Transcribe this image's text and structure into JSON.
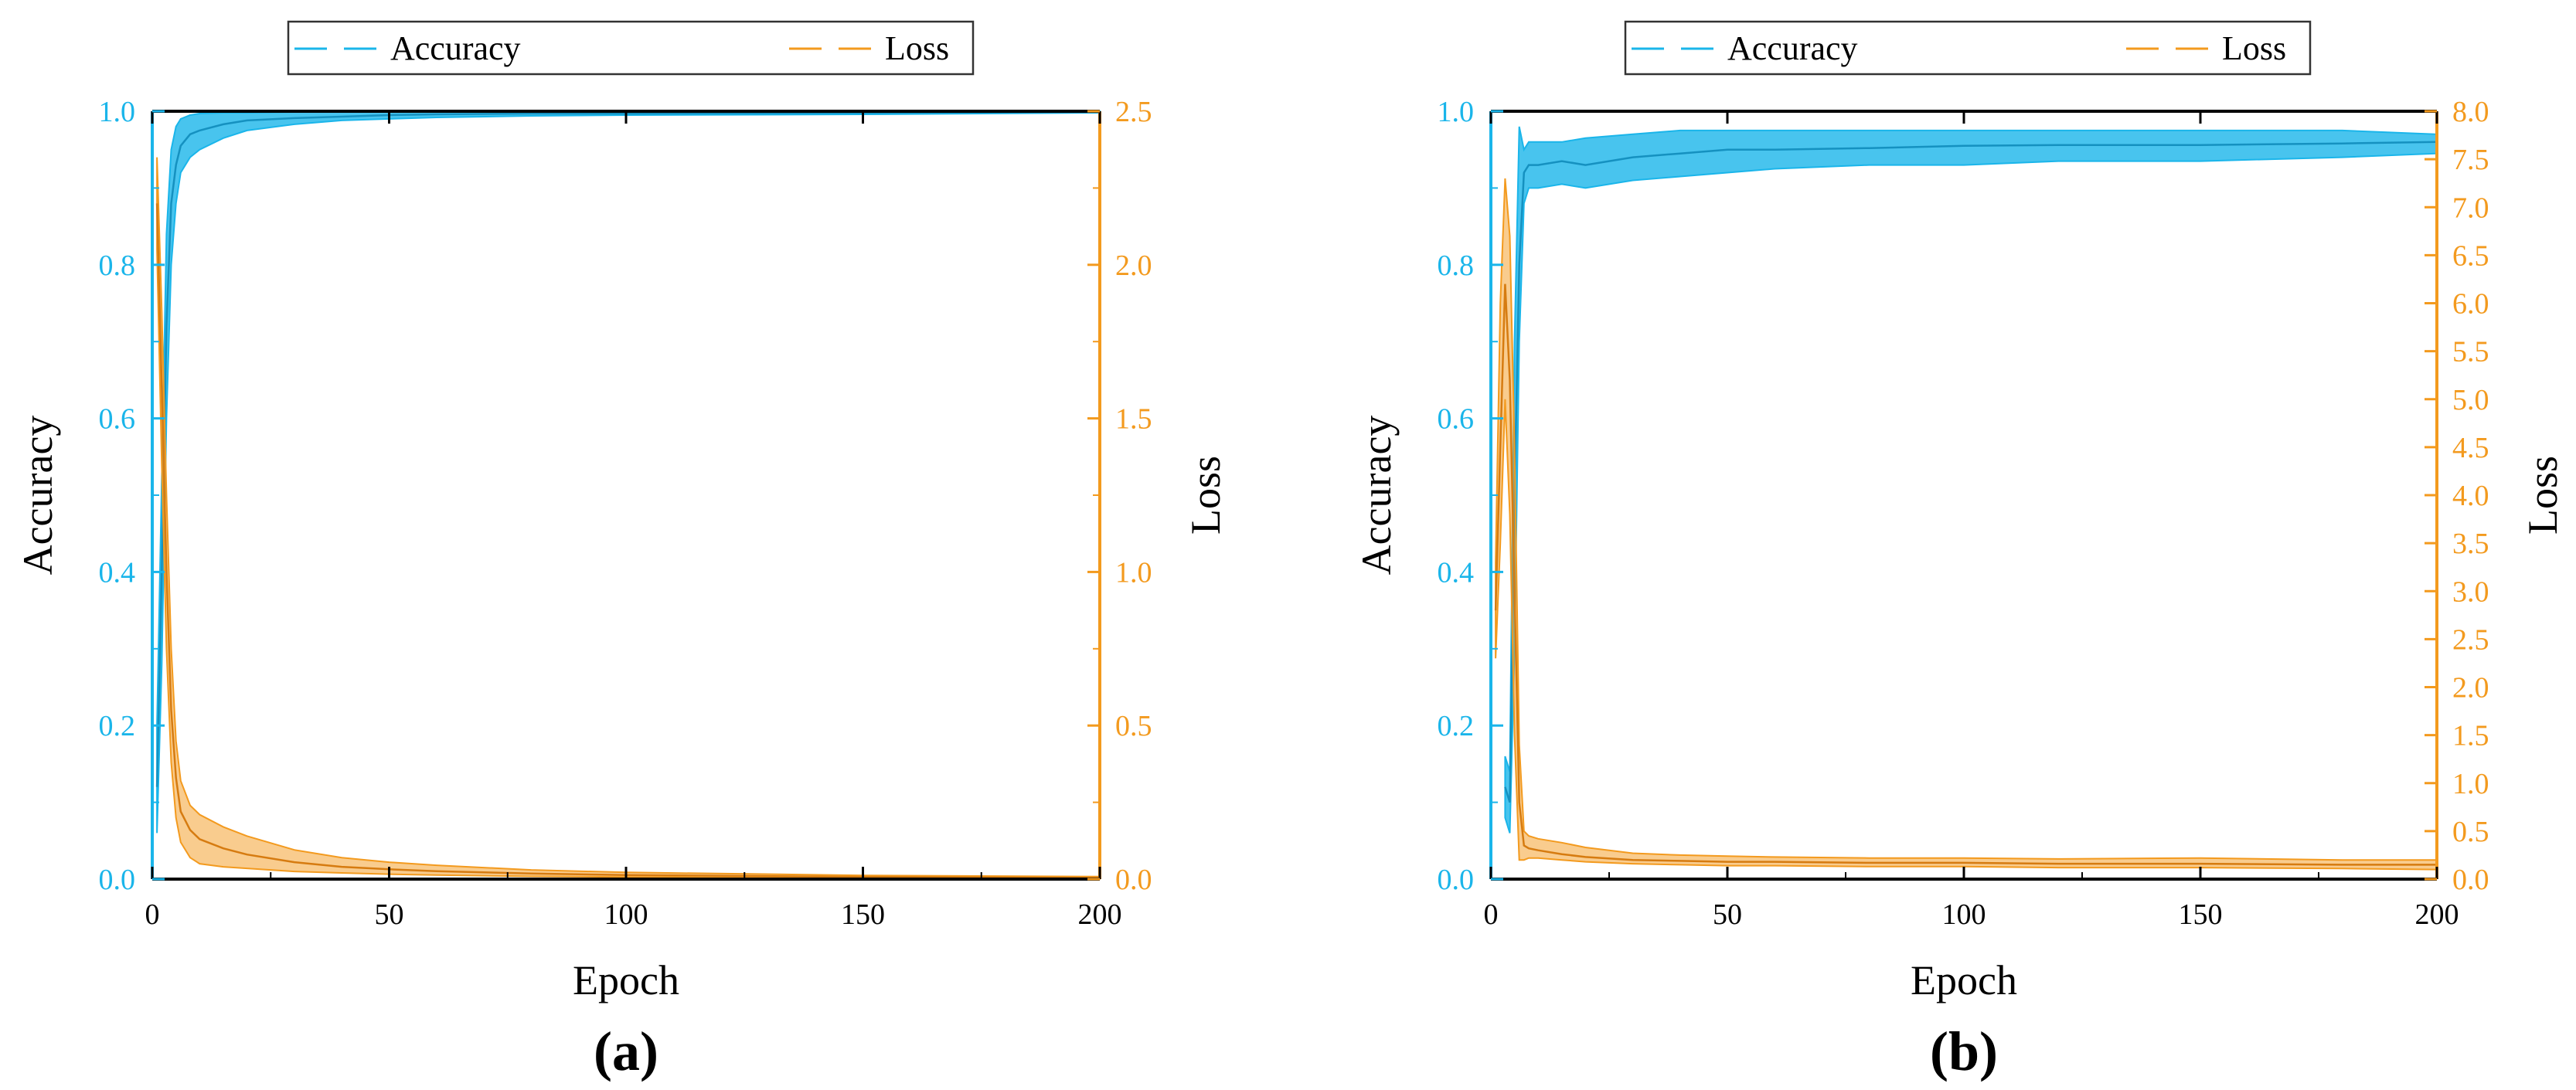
{
  "colors": {
    "accuracy": "#1ab5ea",
    "loss": "#f39a1e",
    "axis": "#000000"
  },
  "chart_data": [
    {
      "type": "line",
      "panel_label": "(a)",
      "legend": {
        "placement": "top",
        "entries": [
          "Accuracy",
          "Loss"
        ]
      },
      "xlabel": "Epoch",
      "ylabel": "Accuracy",
      "y2label": "Loss",
      "xlim": [
        0,
        200
      ],
      "ylim": [
        0,
        1.0
      ],
      "y2lim": [
        0,
        2.5
      ],
      "xticks": [
        0,
        50,
        100,
        150,
        200
      ],
      "yticks": [
        "0.0",
        "0.2",
        "0.4",
        "0.6",
        "0.8",
        "1.0"
      ],
      "y2ticks": [
        "0.0",
        "0.5",
        "1.0",
        "1.5",
        "2.0",
        "2.5"
      ],
      "grid": false,
      "series": [
        {
          "name": "Accuracy",
          "axis": "left",
          "x": [
            1,
            2,
            3,
            4,
            5,
            6,
            8,
            10,
            15,
            20,
            30,
            40,
            50,
            60,
            80,
            100,
            150,
            200
          ],
          "mean": [
            0.12,
            0.4,
            0.72,
            0.88,
            0.93,
            0.955,
            0.97,
            0.975,
            0.983,
            0.988,
            0.991,
            0.993,
            0.995,
            0.996,
            0.997,
            0.997,
            0.998,
            0.999
          ],
          "lower": [
            0.06,
            0.28,
            0.6,
            0.8,
            0.88,
            0.92,
            0.94,
            0.95,
            0.965,
            0.975,
            0.983,
            0.988,
            0.99,
            0.992,
            0.994,
            0.995,
            0.996,
            0.998
          ],
          "upper": [
            0.2,
            0.52,
            0.84,
            0.95,
            0.98,
            0.99,
            0.995,
            0.997,
            0.998,
            0.998,
            0.999,
            0.999,
            1.0,
            1.0,
            1.0,
            1.0,
            1.0,
            1.0
          ]
        },
        {
          "name": "Loss",
          "axis": "right",
          "x": [
            1,
            2,
            3,
            4,
            5,
            6,
            8,
            10,
            15,
            20,
            30,
            40,
            50,
            60,
            80,
            100,
            150,
            200
          ],
          "mean": [
            2.2,
            1.6,
            1.0,
            0.55,
            0.33,
            0.22,
            0.16,
            0.13,
            0.1,
            0.08,
            0.055,
            0.04,
            0.032,
            0.026,
            0.018,
            0.013,
            0.007,
            0.004
          ],
          "lower": [
            2.05,
            1.35,
            0.75,
            0.38,
            0.2,
            0.12,
            0.07,
            0.05,
            0.04,
            0.035,
            0.025,
            0.02,
            0.016,
            0.013,
            0.009,
            0.007,
            0.003,
            0.001
          ],
          "upper": [
            2.35,
            1.85,
            1.25,
            0.75,
            0.45,
            0.32,
            0.24,
            0.21,
            0.17,
            0.14,
            0.095,
            0.07,
            0.055,
            0.045,
            0.03,
            0.022,
            0.012,
            0.008
          ]
        }
      ]
    },
    {
      "type": "line",
      "panel_label": "(b)",
      "legend": {
        "placement": "top",
        "entries": [
          "Accuracy",
          "Loss"
        ]
      },
      "xlabel": "Epoch",
      "ylabel": "Accuracy",
      "y2label": "Loss",
      "xlim": [
        0,
        200
      ],
      "ylim": [
        0,
        1.0
      ],
      "y2lim": [
        0,
        8.0
      ],
      "xticks": [
        0,
        50,
        100,
        150,
        200
      ],
      "yticks": [
        "0.0",
        "0.2",
        "0.4",
        "0.6",
        "0.8",
        "1.0"
      ],
      "y2ticks": [
        "0.0",
        "0.5",
        "1.0",
        "1.5",
        "2.0",
        "2.5",
        "3.0",
        "3.5",
        "4.0",
        "4.5",
        "5.0",
        "5.5",
        "6.0",
        "6.5",
        "7.0",
        "7.5",
        "8.0"
      ],
      "grid": false,
      "series": [
        {
          "name": "Accuracy",
          "axis": "left",
          "x": [
            3,
            4,
            5,
            6,
            7,
            8,
            10,
            15,
            20,
            30,
            40,
            50,
            60,
            80,
            100,
            120,
            150,
            180,
            200
          ],
          "mean": [
            0.12,
            0.1,
            0.5,
            0.8,
            0.92,
            0.93,
            0.93,
            0.935,
            0.93,
            0.94,
            0.945,
            0.95,
            0.95,
            0.952,
            0.955,
            0.956,
            0.956,
            0.958,
            0.96
          ],
          "lower": [
            0.08,
            0.06,
            0.3,
            0.7,
            0.88,
            0.9,
            0.9,
            0.905,
            0.9,
            0.91,
            0.915,
            0.92,
            0.925,
            0.93,
            0.93,
            0.935,
            0.935,
            0.94,
            0.945
          ],
          "upper": [
            0.16,
            0.14,
            0.7,
            0.98,
            0.95,
            0.96,
            0.96,
            0.96,
            0.965,
            0.97,
            0.975,
            0.975,
            0.975,
            0.975,
            0.975,
            0.975,
            0.975,
            0.975,
            0.97
          ]
        },
        {
          "name": "Loss",
          "axis": "right",
          "x": [
            1,
            2,
            3,
            4,
            5,
            6,
            7,
            8,
            10,
            15,
            20,
            30,
            40,
            50,
            60,
            80,
            100,
            120,
            150,
            180,
            200
          ],
          "mean": [
            2.8,
            4.5,
            6.2,
            5.2,
            3.0,
            0.8,
            0.35,
            0.32,
            0.3,
            0.26,
            0.23,
            0.2,
            0.19,
            0.18,
            0.18,
            0.17,
            0.17,
            0.16,
            0.16,
            0.15,
            0.15
          ],
          "lower": [
            2.3,
            3.5,
            5.0,
            3.8,
            1.5,
            0.2,
            0.2,
            0.22,
            0.22,
            0.2,
            0.18,
            0.16,
            0.15,
            0.14,
            0.14,
            0.13,
            0.13,
            0.12,
            0.12,
            0.11,
            0.1
          ],
          "upper": [
            3.3,
            6.0,
            7.3,
            6.7,
            4.5,
            1.4,
            0.5,
            0.45,
            0.42,
            0.38,
            0.33,
            0.27,
            0.25,
            0.24,
            0.23,
            0.22,
            0.22,
            0.21,
            0.22,
            0.2,
            0.2
          ]
        }
      ]
    }
  ]
}
